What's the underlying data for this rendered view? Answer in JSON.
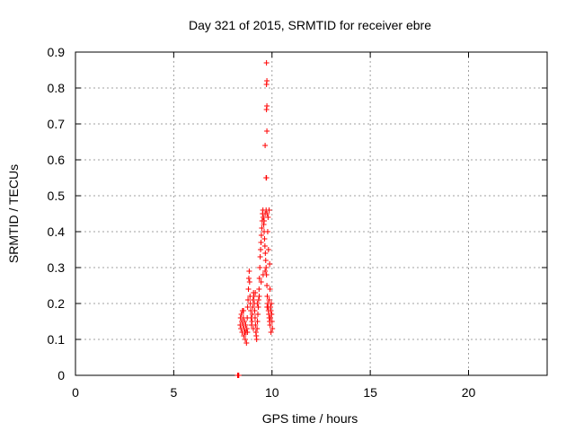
{
  "chart_data": {
    "type": "scatter",
    "title": "Day 321 of 2015, SRMTID for receiver ebre",
    "xlabel": "GPS time / hours",
    "ylabel": "SRMTID / TECUs",
    "xlim": [
      0,
      24
    ],
    "ylim": [
      0,
      0.9
    ],
    "xticks": [
      0,
      5,
      10,
      15,
      20
    ],
    "yticks": [
      0,
      0.1,
      0.2,
      0.3,
      0.4,
      0.5,
      0.6,
      0.7,
      0.8,
      0.9
    ],
    "xtick_labels": [
      "0",
      "5",
      "10",
      "15",
      "20"
    ],
    "ytick_labels": [
      "0",
      "0.1",
      "0.2",
      "0.3",
      "0.4",
      "0.5",
      "0.6",
      "0.7",
      "0.8",
      "0.9"
    ],
    "grid": true,
    "marker": "+",
    "color": "#ff0000",
    "series": [
      {
        "points": [
          [
            8.25,
            0.0
          ],
          [
            8.27,
            0.0
          ],
          [
            8.29,
            0.0
          ],
          [
            8.31,
            0.0
          ],
          [
            8.38,
            0.14
          ],
          [
            8.4,
            0.16
          ],
          [
            8.42,
            0.13
          ],
          [
            8.44,
            0.17
          ],
          [
            8.46,
            0.15
          ],
          [
            8.48,
            0.12
          ],
          [
            8.5,
            0.18
          ],
          [
            8.52,
            0.14
          ],
          [
            8.54,
            0.16
          ],
          [
            8.56,
            0.11
          ],
          [
            8.58,
            0.13
          ],
          [
            8.6,
            0.15
          ],
          [
            8.62,
            0.12
          ],
          [
            8.64,
            0.1
          ],
          [
            8.66,
            0.14
          ],
          [
            8.68,
            0.12
          ],
          [
            8.7,
            0.09
          ],
          [
            8.72,
            0.13
          ],
          [
            8.74,
            0.16
          ],
          [
            8.76,
            0.19
          ],
          [
            8.78,
            0.21
          ],
          [
            8.8,
            0.24
          ],
          [
            8.82,
            0.27
          ],
          [
            8.84,
            0.29
          ],
          [
            8.86,
            0.26
          ],
          [
            8.88,
            0.22
          ],
          [
            8.9,
            0.2
          ],
          [
            8.92,
            0.18
          ],
          [
            8.94,
            0.16
          ],
          [
            8.96,
            0.14
          ],
          [
            8.98,
            0.15
          ],
          [
            9.0,
            0.17
          ],
          [
            9.02,
            0.19
          ],
          [
            9.04,
            0.21
          ],
          [
            9.06,
            0.23
          ],
          [
            9.08,
            0.22
          ],
          [
            9.1,
            0.2
          ],
          [
            9.12,
            0.18
          ],
          [
            9.14,
            0.16
          ],
          [
            9.16,
            0.14
          ],
          [
            9.18,
            0.12
          ],
          [
            9.2,
            0.11
          ],
          [
            9.22,
            0.1
          ],
          [
            9.24,
            0.13
          ],
          [
            9.26,
            0.15
          ],
          [
            9.28,
            0.17
          ],
          [
            9.3,
            0.19
          ],
          [
            9.32,
            0.21
          ],
          [
            9.34,
            0.24
          ],
          [
            9.36,
            0.27
          ],
          [
            9.38,
            0.3
          ],
          [
            9.4,
            0.33
          ],
          [
            9.42,
            0.35
          ],
          [
            9.44,
            0.37
          ],
          [
            9.46,
            0.39
          ],
          [
            9.48,
            0.41
          ],
          [
            9.5,
            0.43
          ],
          [
            9.52,
            0.45
          ],
          [
            9.54,
            0.46
          ],
          [
            9.56,
            0.44
          ],
          [
            9.58,
            0.42
          ],
          [
            9.6,
            0.4
          ],
          [
            9.62,
            0.38
          ],
          [
            9.64,
            0.36
          ],
          [
            9.66,
            0.34
          ],
          [
            9.68,
            0.32
          ],
          [
            9.7,
            0.3
          ],
          [
            9.72,
            0.28
          ],
          [
            9.74,
            0.25
          ],
          [
            9.76,
            0.22
          ],
          [
            9.78,
            0.2
          ],
          [
            9.8,
            0.19
          ],
          [
            9.82,
            0.18
          ],
          [
            9.84,
            0.17
          ],
          [
            9.86,
            0.16
          ],
          [
            9.88,
            0.15
          ],
          [
            9.9,
            0.14
          ],
          [
            9.92,
            0.16
          ],
          [
            9.94,
            0.18
          ],
          [
            9.96,
            0.2
          ],
          [
            9.98,
            0.17
          ],
          [
            10.0,
            0.15
          ],
          [
            10.02,
            0.13
          ],
          [
            8.55,
            0.18
          ],
          [
            8.75,
            0.12
          ],
          [
            9.05,
            0.13
          ],
          [
            9.15,
            0.23
          ],
          [
            9.25,
            0.2
          ],
          [
            9.35,
            0.22
          ],
          [
            9.45,
            0.26
          ],
          [
            9.55,
            0.28
          ],
          [
            9.65,
            0.29
          ],
          [
            9.75,
            0.19
          ],
          [
            9.85,
            0.21
          ],
          [
            9.95,
            0.12
          ],
          [
            9.55,
            0.44
          ],
          [
            9.6,
            0.43
          ],
          [
            9.65,
            0.45
          ],
          [
            9.7,
            0.46
          ],
          [
            9.75,
            0.45
          ],
          [
            9.8,
            0.44
          ],
          [
            9.85,
            0.46
          ],
          [
            9.78,
            0.4
          ],
          [
            9.82,
            0.35
          ],
          [
            9.88,
            0.31
          ],
          [
            9.9,
            0.24
          ],
          [
            9.92,
            0.19
          ],
          [
            9.7,
            0.55
          ],
          [
            9.72,
            0.55
          ],
          [
            9.65,
            0.64
          ],
          [
            9.74,
            0.68
          ],
          [
            9.72,
            0.74
          ],
          [
            9.74,
            0.75
          ],
          [
            9.72,
            0.81
          ],
          [
            9.74,
            0.82
          ],
          [
            9.72,
            0.87
          ]
        ]
      }
    ]
  }
}
